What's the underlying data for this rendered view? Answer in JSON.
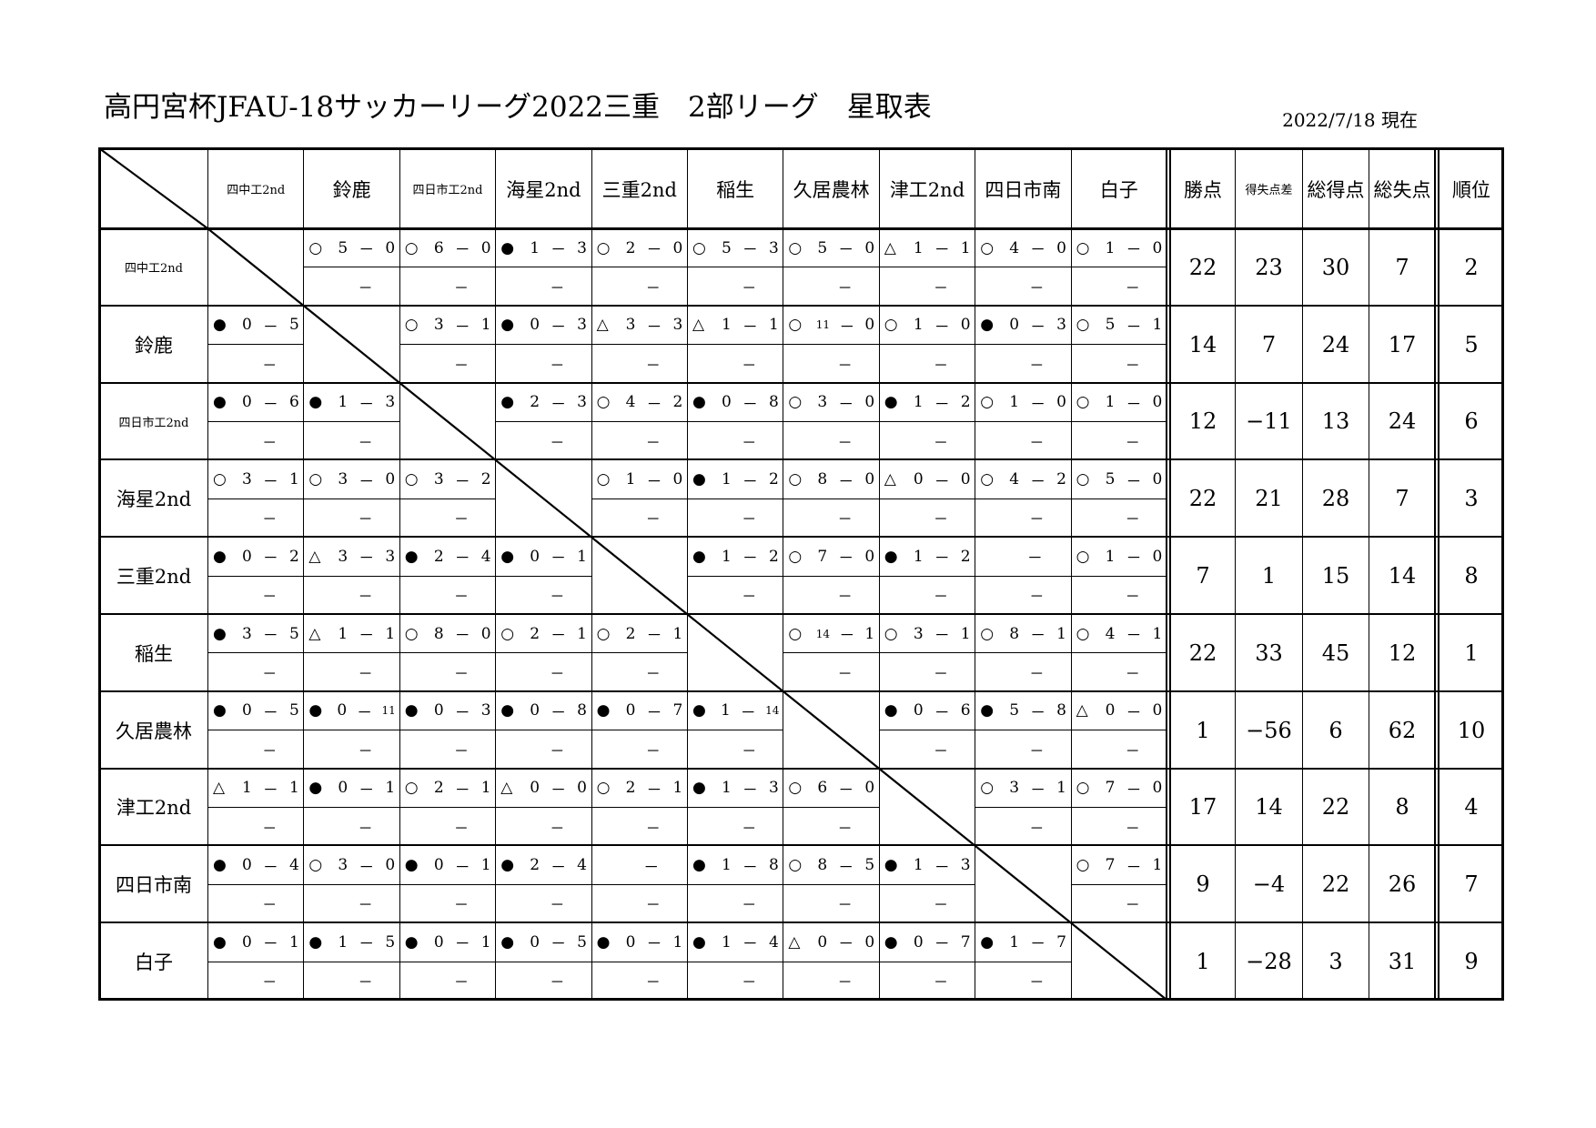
{
  "title": "高円宮杯JFAU-18サッカーリーグ2022三重　2部リーグ　星取表",
  "date": "2022/7/18 現在",
  "teams": [
    "四中工2nd",
    "鈴鹿",
    "四日市工2nd",
    "海星2nd",
    "三重2nd",
    "稲生",
    "久居農林",
    "津工2nd",
    "四日市南",
    "白子"
  ],
  "stat_headers": [
    "勝点",
    "得失点差",
    "総得点",
    "総失点",
    "順位"
  ],
  "results": [
    [
      null,
      [
        "○",
        "5",
        "0"
      ],
      [
        "○",
        "6",
        "0"
      ],
      [
        "●",
        "1",
        "3"
      ],
      [
        "○",
        "2",
        "0"
      ],
      [
        "○",
        "5",
        "3"
      ],
      [
        "○",
        "5",
        "0"
      ],
      [
        "△",
        "1",
        "1"
      ],
      [
        "○",
        "4",
        "0"
      ],
      [
        "○",
        "1",
        "0"
      ]
    ],
    [
      [
        "●",
        "0",
        "5"
      ],
      null,
      [
        "○",
        "3",
        "1"
      ],
      [
        "●",
        "0",
        "3"
      ],
      [
        "△",
        "3",
        "3"
      ],
      [
        "△",
        "1",
        "1"
      ],
      [
        "○",
        "11",
        "0"
      ],
      [
        "○",
        "1",
        "0"
      ],
      [
        "●",
        "0",
        "3"
      ],
      [
        "○",
        "5",
        "1"
      ]
    ],
    [
      [
        "●",
        "0",
        "6"
      ],
      [
        "●",
        "1",
        "3"
      ],
      null,
      [
        "●",
        "2",
        "3"
      ],
      [
        "○",
        "4",
        "2"
      ],
      [
        "●",
        "0",
        "8"
      ],
      [
        "○",
        "3",
        "0"
      ],
      [
        "●",
        "1",
        "2"
      ],
      [
        "○",
        "1",
        "0"
      ],
      [
        "○",
        "1",
        "0"
      ]
    ],
    [
      [
        "○",
        "3",
        "1"
      ],
      [
        "○",
        "3",
        "0"
      ],
      [
        "○",
        "3",
        "2"
      ],
      null,
      [
        "○",
        "1",
        "0"
      ],
      [
        "●",
        "1",
        "2"
      ],
      [
        "○",
        "8",
        "0"
      ],
      [
        "△",
        "0",
        "0"
      ],
      [
        "○",
        "4",
        "2"
      ],
      [
        "○",
        "5",
        "0"
      ]
    ],
    [
      [
        "●",
        "0",
        "2"
      ],
      [
        "△",
        "3",
        "3"
      ],
      [
        "●",
        "2",
        "4"
      ],
      [
        "●",
        "0",
        "1"
      ],
      null,
      [
        "●",
        "1",
        "2"
      ],
      [
        "○",
        "7",
        "0"
      ],
      [
        "●",
        "1",
        "2"
      ],
      [
        "",
        "",
        ""
      ],
      [
        "○",
        "1",
        "0"
      ]
    ],
    [
      [
        "●",
        "3",
        "5"
      ],
      [
        "△",
        "1",
        "1"
      ],
      [
        "○",
        "8",
        "0"
      ],
      [
        "○",
        "2",
        "1"
      ],
      [
        "○",
        "2",
        "1"
      ],
      null,
      [
        "○",
        "14",
        "1"
      ],
      [
        "○",
        "3",
        "1"
      ],
      [
        "○",
        "8",
        "1"
      ],
      [
        "○",
        "4",
        "1"
      ]
    ],
    [
      [
        "●",
        "0",
        "5"
      ],
      [
        "●",
        "0",
        "11"
      ],
      [
        "●",
        "0",
        "3"
      ],
      [
        "●",
        "0",
        "8"
      ],
      [
        "●",
        "0",
        "7"
      ],
      [
        "●",
        "1",
        "14"
      ],
      null,
      [
        "●",
        "0",
        "6"
      ],
      [
        "●",
        "5",
        "8"
      ],
      [
        "△",
        "0",
        "0"
      ]
    ],
    [
      [
        "△",
        "1",
        "1"
      ],
      [
        "●",
        "0",
        "1"
      ],
      [
        "○",
        "2",
        "1"
      ],
      [
        "△",
        "0",
        "0"
      ],
      [
        "○",
        "2",
        "1"
      ],
      [
        "●",
        "1",
        "3"
      ],
      [
        "○",
        "6",
        "0"
      ],
      null,
      [
        "○",
        "3",
        "1"
      ],
      [
        "○",
        "7",
        "0"
      ]
    ],
    [
      [
        "●",
        "0",
        "4"
      ],
      [
        "○",
        "3",
        "0"
      ],
      [
        "●",
        "0",
        "1"
      ],
      [
        "●",
        "2",
        "4"
      ],
      [
        "",
        "",
        ""
      ],
      [
        "●",
        "1",
        "8"
      ],
      [
        "○",
        "8",
        "5"
      ],
      [
        "●",
        "1",
        "3"
      ],
      null,
      [
        "○",
        "7",
        "1"
      ]
    ],
    [
      [
        "●",
        "0",
        "1"
      ],
      [
        "●",
        "1",
        "5"
      ],
      [
        "●",
        "0",
        "1"
      ],
      [
        "●",
        "0",
        "5"
      ],
      [
        "●",
        "0",
        "1"
      ],
      [
        "●",
        "1",
        "4"
      ],
      [
        "△",
        "0",
        "0"
      ],
      [
        "●",
        "0",
        "7"
      ],
      [
        "●",
        "1",
        "7"
      ],
      null
    ]
  ],
  "dash": "－",
  "sub_value": "－",
  "stats": [
    [
      "22",
      "23",
      "30",
      "7",
      "2"
    ],
    [
      "14",
      "7",
      "24",
      "17",
      "5"
    ],
    [
      "12",
      "−11",
      "13",
      "24",
      "6"
    ],
    [
      "22",
      "21",
      "28",
      "7",
      "3"
    ],
    [
      "7",
      "1",
      "15",
      "14",
      "8"
    ],
    [
      "22",
      "33",
      "45",
      "12",
      "1"
    ],
    [
      "1",
      "−56",
      "6",
      "62",
      "10"
    ],
    [
      "17",
      "14",
      "22",
      "8",
      "4"
    ],
    [
      "9",
      "−4",
      "22",
      "26",
      "7"
    ],
    [
      "1",
      "−28",
      "3",
      "31",
      "9"
    ]
  ]
}
